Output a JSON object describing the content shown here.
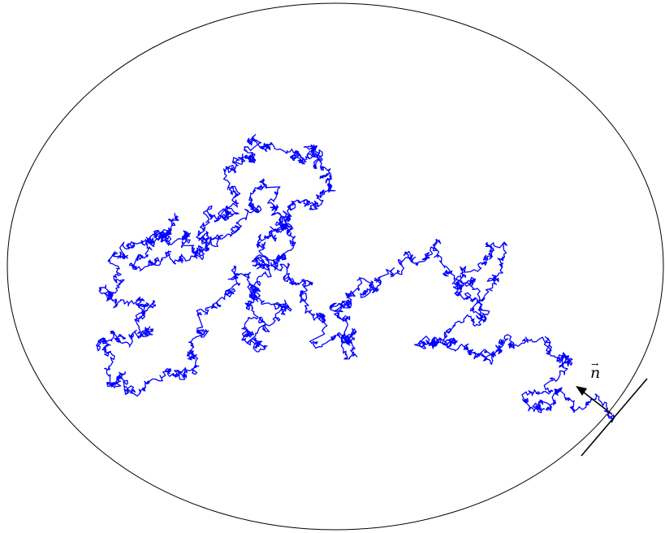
{
  "figure": {
    "normal_label": "n",
    "normal_arrow_glyph": "→",
    "colors": {
      "domain_boundary": "#000000",
      "random_walk": "#0000ff",
      "tangent_line": "#000000",
      "normal_vector": "#000000"
    }
  }
}
